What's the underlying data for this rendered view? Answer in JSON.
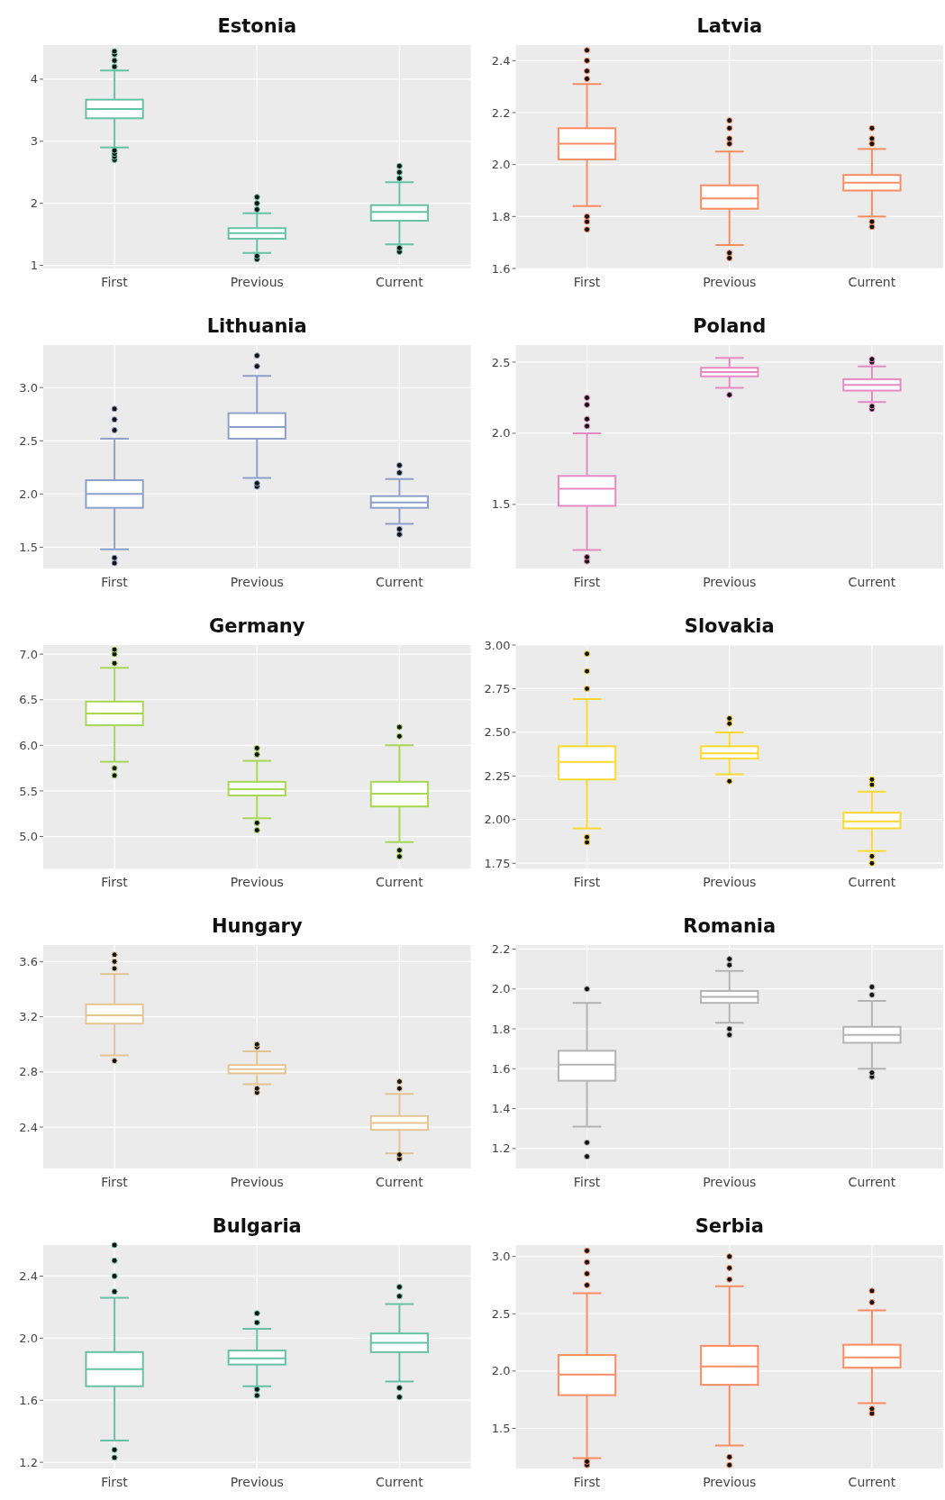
{
  "chart_data": [
    {
      "type": "box",
      "title": "Estonia",
      "categories": [
        "First",
        "Previous",
        "Current"
      ],
      "color": "#66c2a5",
      "grid": true,
      "ylim": [
        0.95,
        4.55
      ],
      "yticks": [
        1,
        2,
        3,
        4
      ],
      "boxes": [
        {
          "low": 2.9,
          "q1": 3.37,
          "median": 3.52,
          "q3": 3.67,
          "high": 4.14,
          "outliers": [
            2.7,
            2.75,
            2.8,
            2.85,
            4.2,
            4.3,
            4.4,
            4.45
          ]
        },
        {
          "low": 1.2,
          "q1": 1.43,
          "median": 1.52,
          "q3": 1.6,
          "high": 1.84,
          "outliers": [
            1.1,
            1.15,
            1.9,
            2.0,
            2.1
          ]
        },
        {
          "low": 1.34,
          "q1": 1.72,
          "median": 1.86,
          "q3": 1.97,
          "high": 2.34,
          "outliers": [
            1.22,
            1.28,
            2.4,
            2.5,
            2.6
          ]
        }
      ]
    },
    {
      "type": "box",
      "title": "Latvia",
      "categories": [
        "First",
        "Previous",
        "Current"
      ],
      "color": "#fc8d62",
      "grid": true,
      "ylim": [
        1.6,
        2.46
      ],
      "yticks": [
        1.6,
        1.8,
        {
          "value": 2,
          "label": "2.0"
        },
        2.2,
        2.4
      ],
      "boxes": [
        {
          "low": 1.84,
          "q1": 2.02,
          "median": 2.08,
          "q3": 2.14,
          "high": 2.31,
          "outliers": [
            1.75,
            1.78,
            1.8,
            2.33,
            2.36,
            2.4,
            2.44
          ]
        },
        {
          "low": 1.69,
          "q1": 1.83,
          "median": 1.87,
          "q3": 1.92,
          "high": 2.05,
          "outliers": [
            1.64,
            1.66,
            2.08,
            2.1,
            2.14,
            2.17
          ]
        },
        {
          "low": 1.8,
          "q1": 1.9,
          "median": 1.93,
          "q3": 1.96,
          "high": 2.06,
          "outliers": [
            1.76,
            1.78,
            2.08,
            2.1,
            2.14
          ]
        }
      ]
    },
    {
      "type": "box",
      "title": "Lithuania",
      "categories": [
        "First",
        "Previous",
        "Current"
      ],
      "color": "#8da0cb",
      "grid": true,
      "ylim": [
        1.3,
        3.4
      ],
      "yticks": [
        1.5,
        {
          "value": 2,
          "label": "2.0"
        },
        2.5,
        {
          "value": 3,
          "label": "3.0"
        }
      ],
      "boxes": [
        {
          "low": 1.48,
          "q1": 1.87,
          "median": 2.0,
          "q3": 2.13,
          "high": 2.52,
          "outliers": [
            1.35,
            1.4,
            2.6,
            2.7,
            2.8
          ]
        },
        {
          "low": 2.15,
          "q1": 2.52,
          "median": 2.63,
          "q3": 2.76,
          "high": 3.11,
          "outliers": [
            2.07,
            2.1,
            3.2,
            3.3
          ]
        },
        {
          "low": 1.72,
          "q1": 1.87,
          "median": 1.92,
          "q3": 1.98,
          "high": 2.14,
          "outliers": [
            1.62,
            1.67,
            2.2,
            2.27
          ]
        }
      ]
    },
    {
      "type": "box",
      "title": "Poland",
      "categories": [
        "First",
        "Previous",
        "Current"
      ],
      "color": "#e78ac3",
      "grid": true,
      "ylim": [
        1.05,
        2.62
      ],
      "yticks": [
        1.5,
        {
          "value": 2,
          "label": "2.0"
        },
        2.5
      ],
      "boxes": [
        {
          "low": 1.18,
          "q1": 1.49,
          "median": 1.61,
          "q3": 1.7,
          "high": 2.0,
          "outliers": [
            1.1,
            1.13,
            2.05,
            2.1,
            2.2,
            2.25
          ]
        },
        {
          "low": 2.32,
          "q1": 2.4,
          "median": 2.43,
          "q3": 2.46,
          "high": 2.53,
          "outliers": [
            2.27
          ]
        },
        {
          "low": 2.22,
          "q1": 2.3,
          "median": 2.34,
          "q3": 2.38,
          "high": 2.47,
          "outliers": [
            2.17,
            2.19,
            2.5,
            2.52
          ]
        }
      ]
    },
    {
      "type": "box",
      "title": "Germany",
      "categories": [
        "First",
        "Previous",
        "Current"
      ],
      "color": "#a6d854",
      "grid": true,
      "ylim": [
        4.65,
        7.1
      ],
      "yticks": [
        {
          "value": 5,
          "label": "5.0"
        },
        5.5,
        {
          "value": 6,
          "label": "6.0"
        },
        6.5,
        {
          "value": 7,
          "label": "7.0"
        }
      ],
      "boxes": [
        {
          "low": 5.82,
          "q1": 6.22,
          "median": 6.35,
          "q3": 6.48,
          "high": 6.85,
          "outliers": [
            5.67,
            5.75,
            6.9,
            7.0,
            7.05
          ]
        },
        {
          "low": 5.2,
          "q1": 5.45,
          "median": 5.52,
          "q3": 5.6,
          "high": 5.83,
          "outliers": [
            5.07,
            5.15,
            5.9,
            5.97
          ]
        },
        {
          "low": 4.94,
          "q1": 5.33,
          "median": 5.47,
          "q3": 5.6,
          "high": 6.0,
          "outliers": [
            4.78,
            4.85,
            6.1,
            6.2
          ]
        }
      ]
    },
    {
      "type": "box",
      "title": "Slovakia",
      "categories": [
        "First",
        "Previous",
        "Current"
      ],
      "color": "#ffd92f",
      "grid": true,
      "ylim": [
        1.72,
        3.0
      ],
      "yticks": [
        {
          "value": 1.75,
          "label": "1.75"
        },
        {
          "value": 2,
          "label": "2.00"
        },
        {
          "value": 2.25,
          "label": "2.25"
        },
        {
          "value": 2.5,
          "label": "2.50"
        },
        {
          "value": 2.75,
          "label": "2.75"
        },
        {
          "value": 3,
          "label": "3.00"
        }
      ],
      "boxes": [
        {
          "low": 1.95,
          "q1": 2.23,
          "median": 2.33,
          "q3": 2.42,
          "high": 2.69,
          "outliers": [
            1.87,
            1.9,
            2.75,
            2.85,
            2.95
          ]
        },
        {
          "low": 2.26,
          "q1": 2.35,
          "median": 2.38,
          "q3": 2.42,
          "high": 2.5,
          "outliers": [
            2.22,
            2.55,
            2.58
          ]
        },
        {
          "low": 1.82,
          "q1": 1.95,
          "median": 1.99,
          "q3": 2.04,
          "high": 2.16,
          "outliers": [
            1.75,
            1.79,
            2.2,
            2.23
          ]
        }
      ]
    },
    {
      "type": "box",
      "title": "Hungary",
      "categories": [
        "First",
        "Previous",
        "Current"
      ],
      "color": "#e5c494",
      "grid": true,
      "ylim": [
        2.1,
        3.72
      ],
      "yticks": [
        2.4,
        2.8,
        3.2,
        3.6
      ],
      "boxes": [
        {
          "low": 2.92,
          "q1": 3.15,
          "median": 3.21,
          "q3": 3.29,
          "high": 3.51,
          "outliers": [
            2.88,
            3.55,
            3.6,
            3.65
          ]
        },
        {
          "low": 2.71,
          "q1": 2.79,
          "median": 2.82,
          "q3": 2.85,
          "high": 2.95,
          "outliers": [
            2.65,
            2.68,
            2.98,
            3.0
          ]
        },
        {
          "low": 2.21,
          "q1": 2.38,
          "median": 2.43,
          "q3": 2.48,
          "high": 2.64,
          "outliers": [
            2.17,
            2.2,
            2.68,
            2.73
          ]
        }
      ]
    },
    {
      "type": "box",
      "title": "Romania",
      "categories": [
        "First",
        "Previous",
        "Current"
      ],
      "color": "#b3b3b3",
      "grid": true,
      "ylim": [
        1.1,
        2.22
      ],
      "yticks": [
        1.2,
        1.4,
        1.6,
        1.8,
        {
          "value": 2,
          "label": "2.0"
        },
        2.2
      ],
      "boxes": [
        {
          "low": 1.31,
          "q1": 1.54,
          "median": 1.62,
          "q3": 1.69,
          "high": 1.93,
          "outliers": [
            1.16,
            1.23,
            2.0
          ]
        },
        {
          "low": 1.83,
          "q1": 1.93,
          "median": 1.96,
          "q3": 1.99,
          "high": 2.09,
          "outliers": [
            1.77,
            1.8,
            2.12,
            2.15
          ]
        },
        {
          "low": 1.6,
          "q1": 1.73,
          "median": 1.77,
          "q3": 1.81,
          "high": 1.94,
          "outliers": [
            1.56,
            1.58,
            1.97,
            2.01
          ]
        }
      ]
    },
    {
      "type": "box",
      "title": "Bulgaria",
      "categories": [
        "First",
        "Previous",
        "Current"
      ],
      "color": "#66c2a5",
      "grid": true,
      "ylim": [
        1.16,
        2.6
      ],
      "yticks": [
        1.2,
        1.6,
        {
          "value": 2,
          "label": "2.0"
        },
        2.4
      ],
      "boxes": [
        {
          "low": 1.34,
          "q1": 1.69,
          "median": 1.8,
          "q3": 1.91,
          "high": 2.26,
          "outliers": [
            1.23,
            1.28,
            2.3,
            2.4,
            2.5,
            2.6
          ]
        },
        {
          "low": 1.69,
          "q1": 1.83,
          "median": 1.87,
          "q3": 1.92,
          "high": 2.06,
          "outliers": [
            1.63,
            1.67,
            2.1,
            2.16
          ]
        },
        {
          "low": 1.72,
          "q1": 1.91,
          "median": 1.97,
          "q3": 2.03,
          "high": 2.22,
          "outliers": [
            1.62,
            1.68,
            2.27,
            2.33
          ]
        }
      ]
    },
    {
      "type": "box",
      "title": "Serbia",
      "categories": [
        "First",
        "Previous",
        "Current"
      ],
      "color": "#fc8d62",
      "grid": true,
      "ylim": [
        1.15,
        3.1
      ],
      "yticks": [
        1.5,
        {
          "value": 2,
          "label": "2.0"
        },
        2.5,
        {
          "value": 3,
          "label": "3.0"
        }
      ],
      "boxes": [
        {
          "low": 1.24,
          "q1": 1.79,
          "median": 1.97,
          "q3": 2.14,
          "high": 2.68,
          "outliers": [
            1.18,
            1.21,
            2.75,
            2.85,
            2.95,
            3.05
          ]
        },
        {
          "low": 1.35,
          "q1": 1.88,
          "median": 2.04,
          "q3": 2.22,
          "high": 2.74,
          "outliers": [
            1.18,
            1.25,
            2.8,
            2.9,
            3.0
          ]
        },
        {
          "low": 1.72,
          "q1": 2.03,
          "median": 2.12,
          "q3": 2.23,
          "high": 2.53,
          "outliers": [
            1.63,
            1.67,
            2.6,
            2.7
          ]
        }
      ]
    }
  ]
}
